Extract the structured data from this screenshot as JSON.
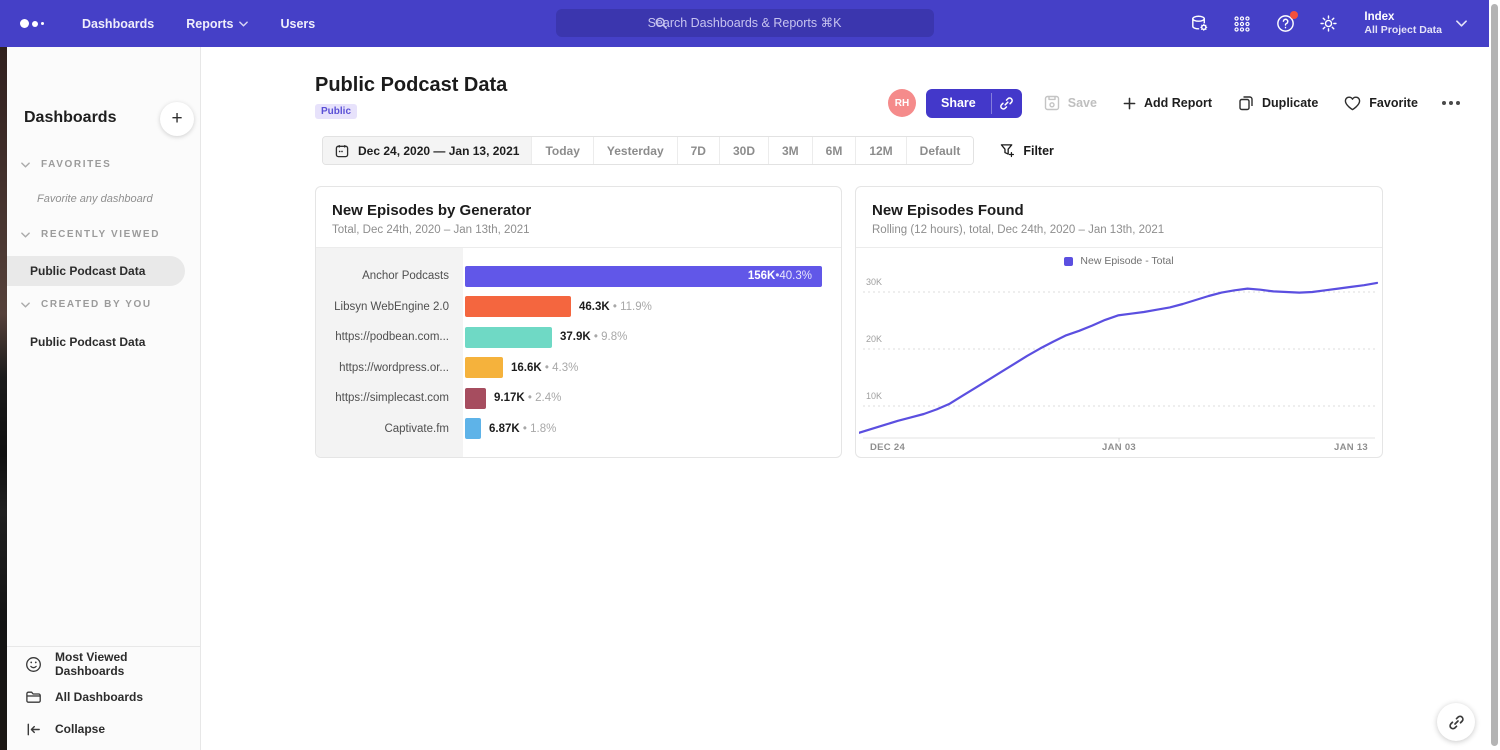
{
  "nav": {
    "items": [
      {
        "label": "Dashboards",
        "has_chevron": false
      },
      {
        "label": "Reports",
        "has_chevron": true
      },
      {
        "label": "Users",
        "has_chevron": false
      }
    ],
    "search": {
      "placeholder": "Search Dashboards & Reports ⌘K"
    },
    "icon_buttons": [
      "data-icon",
      "apps-grid-icon",
      "help-icon",
      "settings-icon"
    ],
    "help_has_badge": true,
    "project": {
      "name": "Index",
      "subtitle": "All Project Data"
    }
  },
  "sidebar": {
    "title": "Dashboards",
    "add_button": "+",
    "sections": [
      {
        "label": "FAVORITES",
        "empty_text": "Favorite any dashboard",
        "items": []
      },
      {
        "label": "RECENTLY VIEWED",
        "items": [
          {
            "label": "Public Podcast Data",
            "selected": true
          }
        ]
      },
      {
        "label": "CREATED BY YOU",
        "items": [
          {
            "label": "Public Podcast Data",
            "selected": false
          }
        ]
      }
    ],
    "footer_items": [
      {
        "icon": "smiley-icon",
        "label": "Most Viewed Dashboards"
      },
      {
        "icon": "folder-icon",
        "label": "All Dashboards"
      },
      {
        "icon": "collapse-icon",
        "label": "Collapse"
      }
    ]
  },
  "header": {
    "title": "Public Podcast Data",
    "badge": "Public",
    "avatar_initials": "RH",
    "share_label": "Share",
    "save_label": "Save",
    "add_report_label": "Add Report",
    "duplicate_label": "Duplicate",
    "favorite_label": "Favorite"
  },
  "toolbar": {
    "date_range": "Dec 24, 2020 — Jan 13, 2021",
    "presets": [
      "Today",
      "Yesterday",
      "7D",
      "30D",
      "3M",
      "6M",
      "12M",
      "Default"
    ],
    "filter_label": "Filter"
  },
  "colors": {
    "navbar": "#4540C7",
    "accent": "#4338CA",
    "line": "#5B4FE0",
    "badge_bg": "#E7E2FB",
    "avatar_bg": "#F58B8B"
  },
  "chart_data": [
    {
      "type": "bar",
      "orientation": "horizontal",
      "title": "New Episodes by Generator",
      "subtitle": "Total, Dec 24th, 2020 – Jan 13th, 2021",
      "categories": [
        "Anchor Podcasts",
        "Libsyn WebEngine 2.0",
        "https://podbean.com...",
        "https://wordpress.or...",
        "https://simplecast.com",
        "Captivate.fm"
      ],
      "values": [
        156000,
        46300,
        37900,
        16600,
        9170,
        6870
      ],
      "value_labels": [
        "156K",
        "46.3K",
        "37.9K",
        "16.6K",
        "9.17K",
        "6.87K"
      ],
      "pct_labels": [
        "40.3%",
        "11.9%",
        "9.8%",
        "4.3%",
        "2.4%",
        "1.8%"
      ],
      "colors": [
        "#6157E8",
        "#F4663F",
        "#6FD9C5",
        "#F5B23C",
        "#A64D5F",
        "#5EB3E8"
      ],
      "separator": "•"
    },
    {
      "type": "line",
      "title": "New Episodes Found",
      "subtitle": "Rolling (12 hours), total, Dec 24th, 2020 – Jan 13th, 2021",
      "legend": [
        {
          "label": "New Episode - Total",
          "color": "#5B4FE0"
        }
      ],
      "x_ticks": [
        "DEC 24",
        "JAN 03",
        "JAN 13"
      ],
      "y_ticks": [
        "10K",
        "20K",
        "30K"
      ],
      "y_tick_values": [
        10000,
        20000,
        30000
      ],
      "grid": "dotted-horizontal",
      "values": [
        5300,
        6000,
        6700,
        7400,
        8000,
        8600,
        9400,
        10400,
        11800,
        13200,
        14600,
        16000,
        17400,
        18800,
        20100,
        21300,
        22400,
        23200,
        24100,
        25100,
        25900,
        26200,
        26500,
        26900,
        27300,
        27900,
        28600,
        29300,
        29900,
        30300,
        30600,
        30400,
        30100,
        30000,
        29900,
        30000,
        30300,
        30600,
        30900,
        31200,
        31600
      ]
    }
  ]
}
